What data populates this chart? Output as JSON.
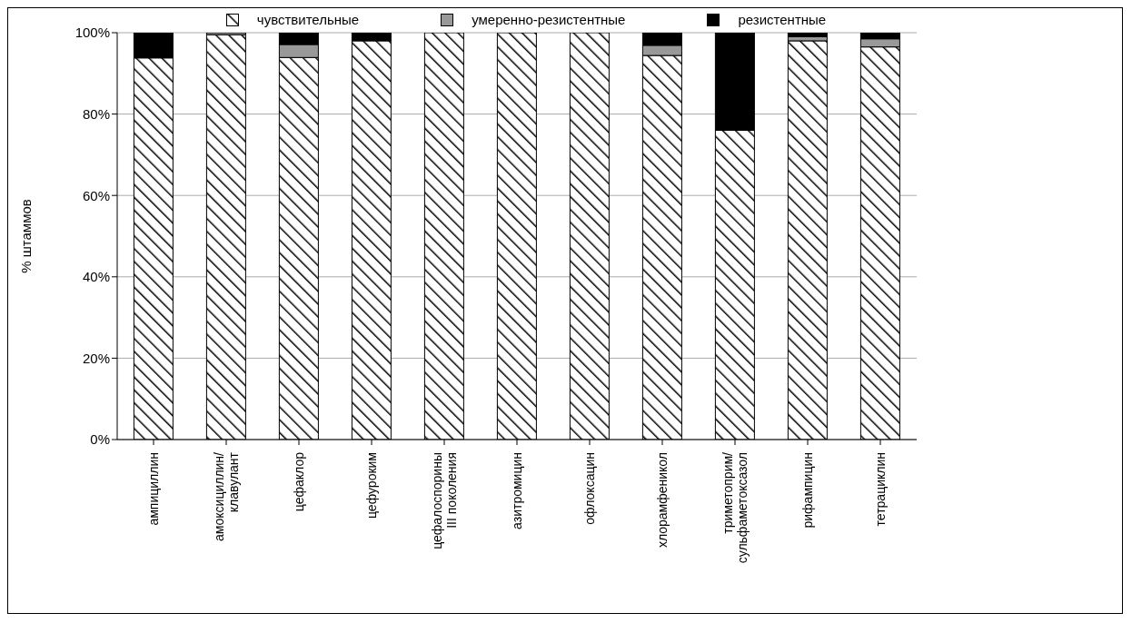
{
  "chart_data": {
    "type": "bar",
    "stacked": true,
    "ylabel": "% штаммов",
    "categories": [
      "ампициллин",
      "амоксициллин/\nклавулант",
      "цефаклор",
      "цефуроким",
      "цефалоспорины\nIII поколения",
      "азитромицин",
      "офлоксацин",
      "хлорамфеникол",
      "триметоприм/\nсульфаметоксазол",
      "рифампицин",
      "тетрациклин"
    ],
    "series": [
      {
        "name": "чувствительные",
        "color": "#000000",
        "values": [
          93.8,
          99.5,
          93.9,
          98,
          100,
          100,
          100,
          94.4,
          76,
          98,
          96.5
        ]
      },
      {
        "name": "умеренно-резистентные",
        "color": "#999999",
        "values": [
          null,
          0.5,
          3.2,
          0,
          0,
          0,
          0,
          2.5,
          0,
          1,
          2
        ]
      },
      {
        "name": "резистентные",
        "color": "#000000",
        "values": [
          6.2,
          0,
          2.9,
          2,
          0,
          0,
          0,
          3.1,
          24,
          1,
          1.5
        ]
      }
    ],
    "ylim": [
      0,
      100
    ],
    "yticks": [
      {
        "value": 0,
        "label": "0%"
      },
      {
        "value": 20,
        "label": "20%"
      },
      {
        "value": 40,
        "label": "40%"
      },
      {
        "value": 60,
        "label": "60%"
      },
      {
        "value": 80,
        "label": "80%"
      },
      {
        "value": 100,
        "label": "100%"
      }
    ],
    "grid": "y",
    "legend": "top"
  }
}
